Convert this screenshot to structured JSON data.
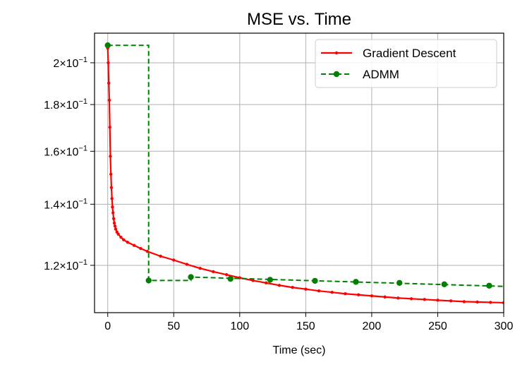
{
  "chart_data": {
    "type": "line",
    "title": "MSE vs. Time",
    "xlabel": "Time (sec)",
    "ylabel": "",
    "xlim": [
      -10,
      300
    ],
    "ylim": [
      0.1065,
      0.2155
    ],
    "yscale": "log",
    "grid": true,
    "legend_position": "top-right",
    "x_ticks": [
      {
        "value": 0,
        "label": "0"
      },
      {
        "value": 50,
        "label": "50"
      },
      {
        "value": 100,
        "label": "100"
      },
      {
        "value": 150,
        "label": "150"
      },
      {
        "value": 200,
        "label": "200"
      },
      {
        "value": 250,
        "label": "250"
      },
      {
        "value": 300,
        "label": "300"
      }
    ],
    "y_ticks": [
      {
        "value": 0.12,
        "mant": "1.2",
        "exp": "−1"
      },
      {
        "value": 0.14,
        "mant": "1.4",
        "exp": "−1"
      },
      {
        "value": 0.16,
        "mant": "1.6",
        "exp": "−1"
      },
      {
        "value": 0.18,
        "mant": "1.8",
        "exp": "−1"
      },
      {
        "value": 0.2,
        "mant": "2",
        "exp": "−1"
      }
    ],
    "series": [
      {
        "name": "Gradient Descent",
        "color": "#ff0000",
        "style": "solid",
        "marker": "small-dot",
        "x": [
          0,
          0.4,
          0.8,
          1.2,
          1.6,
          2,
          2.4,
          2.8,
          3.2,
          3.6,
          4,
          4.5,
          5,
          5.5,
          6,
          7,
          8,
          10,
          12,
          15,
          20,
          25,
          30,
          40,
          50,
          60,
          70,
          80,
          90,
          100,
          110,
          120,
          130,
          140,
          150,
          160,
          170,
          180,
          190,
          200,
          210,
          220,
          230,
          240,
          250,
          260,
          270,
          280,
          290,
          300
        ],
        "y": [
          0.2075,
          0.2,
          0.19,
          0.182,
          0.17,
          0.158,
          0.151,
          0.146,
          0.142,
          0.139,
          0.137,
          0.135,
          0.1335,
          0.1325,
          0.1315,
          0.1305,
          0.1298,
          0.1288,
          0.128,
          0.1272,
          0.1262,
          0.1252,
          0.1243,
          0.1228,
          0.1216,
          0.1203,
          0.1191,
          0.1181,
          0.1172,
          0.1163,
          0.1155,
          0.1148,
          0.1141,
          0.1135,
          0.113,
          0.1125,
          0.1121,
          0.1117,
          0.1114,
          0.1111,
          0.1108,
          0.1105,
          0.1103,
          0.1101,
          0.1099,
          0.1097,
          0.1095,
          0.1094,
          0.1093,
          0.1092
        ]
      },
      {
        "name": "ADMM",
        "color": "#008000",
        "style": "dashed",
        "marker": "dot",
        "x": [
          0,
          31,
          63,
          93,
          123,
          157,
          188,
          221,
          255,
          289
        ],
        "y": [
          0.209,
          0.1155,
          0.1165,
          0.116,
          0.1157,
          0.1154,
          0.1151,
          0.1148,
          0.1144,
          0.114
        ],
        "step_line_x": [
          0,
          31,
          31,
          63,
          63,
          63,
          300
        ],
        "step_line_y": [
          0.209,
          0.209,
          0.1155,
          0.1155,
          0.1165,
          0.1165,
          0.1138
        ]
      }
    ]
  }
}
